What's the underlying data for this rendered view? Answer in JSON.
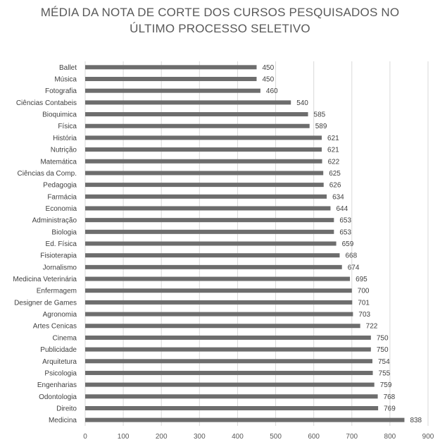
{
  "chart_data": {
    "type": "bar",
    "orientation": "horizontal",
    "title_lines": [
      "MÉDIA DA NOTA DE CORTE DOS CURSOS PESQUISADOS NO",
      "ÚLTIMO PROCESSO SELETIVO"
    ],
    "categories": [
      "Ballet",
      "Música",
      "Fotografia",
      "Ciências Contabeis",
      "Bioquimica",
      "Física",
      "História",
      "Nutrição",
      "Matemática",
      "Ciências da Comp.",
      "Pedagogia",
      "Farmácia",
      "Economia",
      "Administração",
      "Biologia",
      "Ed. Física",
      "Fisioterapia",
      "Jornalismo",
      "Medicina Veterinária",
      "Enfermagem",
      "Designer de Games",
      "Agronomia",
      "Artes Cenicas",
      "Cinema",
      "Publicidade",
      "Arquitetura",
      "Psicologia",
      "Engenharias",
      "Odontologia",
      "Direito",
      "Medicina"
    ],
    "values": [
      450,
      450,
      460,
      540,
      585,
      589,
      621,
      621,
      622,
      625,
      626,
      634,
      644,
      653,
      653,
      659,
      668,
      674,
      695,
      700,
      701,
      703,
      722,
      750,
      750,
      754,
      755,
      759,
      768,
      769,
      838
    ],
    "xlim": [
      0,
      900
    ],
    "xticks": [
      0,
      100,
      200,
      300,
      400,
      500,
      600,
      700,
      800,
      900
    ],
    "xticks_text": [
      "0",
      "100",
      "200",
      "300",
      "400",
      "500",
      "600",
      "700",
      "800",
      "900"
    ],
    "grid": true,
    "legend": "none",
    "bar_color": "#6d6d6d",
    "grid_color": "#d9d9d9"
  }
}
